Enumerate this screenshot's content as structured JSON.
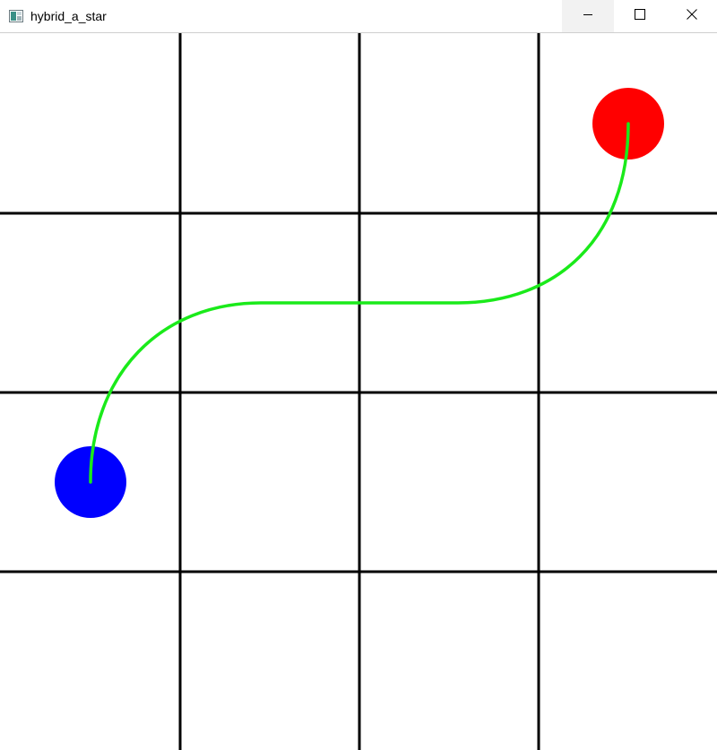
{
  "window": {
    "title": "hybrid_a_star",
    "app_icon": "app-window-icon",
    "controls": {
      "minimize_icon": "minimize-icon",
      "maximize_icon": "maximize-icon",
      "close_icon": "close-icon"
    }
  },
  "scene": {
    "background_color": "#ffffff",
    "grid": {
      "rows": 4,
      "columns": 4,
      "line_color": "#000000"
    },
    "start_marker_color": "#0000ff",
    "goal_marker_color": "#ff0000",
    "path_color": "#1aea1a"
  }
}
